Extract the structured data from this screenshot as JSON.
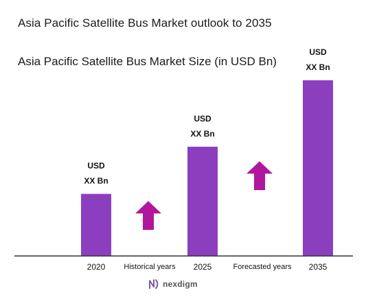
{
  "title": "Asia Pacific Satellite Bus Market outlook to 2035",
  "subtitle": "Asia Pacific Satellite Bus Market Size (in USD Bn)",
  "logo_text": "nexdigm",
  "colors": {
    "bar": "#8b3fbf",
    "arrow": "#b0179c",
    "axis": "#333333",
    "logo": "#7a5aa6"
  },
  "chart_data": {
    "type": "bar",
    "categories": [
      "2020",
      "2025",
      "2035"
    ],
    "values": [
      1.0,
      1.76,
      2.83
    ],
    "data_labels": [
      [
        "USD",
        "XX Bn"
      ],
      [
        "USD",
        "XX Bn"
      ],
      [
        "USD",
        "XX Bn"
      ]
    ],
    "period_labels": [
      "Historical years",
      "Forecasted years"
    ],
    "title": "Asia Pacific Satellite Bus Market Size (in USD Bn)",
    "xlabel": "",
    "ylabel": "",
    "grid": false
  }
}
